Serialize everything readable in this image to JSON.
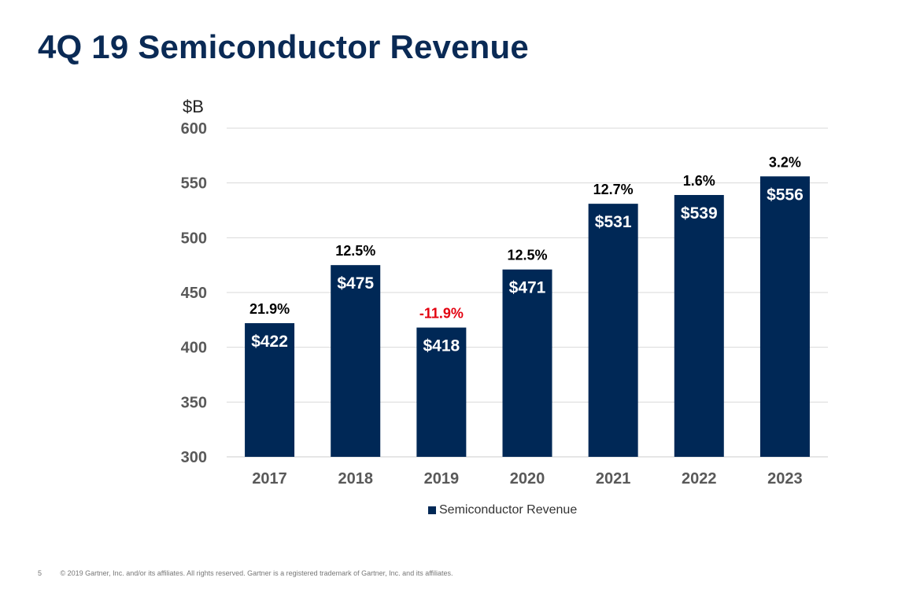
{
  "title": "4Q 19 Semiconductor Revenue",
  "footer": {
    "page_number": "5",
    "copyright": "© 2019 Gartner, Inc. and/or its affiliates. All rights reserved. Gartner is a registered trademark of Gartner, Inc. and its affiliates."
  },
  "colors": {
    "bar": "#002856",
    "title": "#0a2a55",
    "negative_growth": "#e3000f",
    "positive_growth": "#000000"
  },
  "chart_data": {
    "type": "bar",
    "ylabel": "$B",
    "ylim": [
      300,
      600
    ],
    "yticks": [
      300,
      350,
      400,
      450,
      500,
      550,
      600
    ],
    "grid": true,
    "legend_position": "bottom",
    "categories": [
      "2017",
      "2018",
      "2019",
      "2020",
      "2021",
      "2022",
      "2023"
    ],
    "series": [
      {
        "name": "Semiconductor Revenue",
        "values": [
          422,
          475,
          418,
          471,
          531,
          539,
          556
        ],
        "value_labels": [
          "$422",
          "$475",
          "$418",
          "$471",
          "$531",
          "$539",
          "$556"
        ]
      }
    ],
    "growth_labels": [
      "21.9%",
      "12.5%",
      "-11.9%",
      "12.5%",
      "12.7%",
      "1.6%",
      "3.2%"
    ]
  }
}
